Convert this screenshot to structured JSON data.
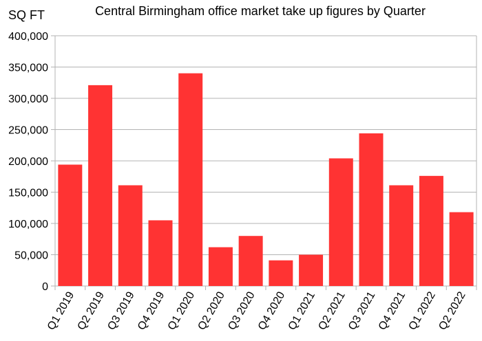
{
  "chart_data": {
    "type": "bar",
    "title": "Central Birmingham office market take up figures by Quarter",
    "ylabel": "SQ FT",
    "xlabel": "",
    "categories": [
      "Q1 2019",
      "Q2 2019",
      "Q3 2019",
      "Q4 2019",
      "Q1 2020",
      "Q2 2020",
      "Q3 2020",
      "Q4 2020",
      "Q1 2021",
      "Q2 2021",
      "Q3 2021",
      "Q4 2021",
      "Q1 2022",
      "Q2 2022"
    ],
    "values": [
      194000,
      321000,
      161000,
      105000,
      340000,
      62000,
      80000,
      41000,
      50000,
      204000,
      244000,
      161000,
      176000,
      118000
    ],
    "ylim": [
      0,
      400000
    ],
    "yticks": [
      "0",
      "50,000",
      "100,000",
      "150,000",
      "200,000",
      "250,000",
      "300,000",
      "350,000",
      "400,000"
    ],
    "grid": true,
    "bar_color": "#ff3333",
    "grid_color": "#b3b3b3"
  }
}
